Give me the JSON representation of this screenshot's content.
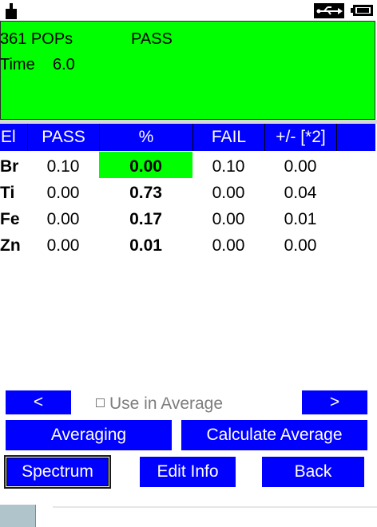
{
  "result": {
    "count": "361 POPs",
    "verdict": "PASS",
    "time_label": "Time",
    "time_value": "6.0",
    "color": "#00ff00"
  },
  "table": {
    "headers": [
      "El",
      "PASS",
      "%",
      "FAIL",
      "+/- [*2]"
    ],
    "rows": [
      {
        "el": "Br",
        "pass": "0.10",
        "pct": "0.00",
        "fail": "0.10",
        "err": "0.00"
      },
      {
        "el": "Ti",
        "pass": "0.00",
        "pct": "0.73",
        "fail": "0.00",
        "err": "0.04"
      },
      {
        "el": "Fe",
        "pass": "0.00",
        "pct": "0.17",
        "fail": "0.00",
        "err": "0.01"
      },
      {
        "el": "Zn",
        "pass": "0.00",
        "pct": "0.01",
        "fail": "0.00",
        "err": "0.00"
      }
    ],
    "header_color": "#0000ff"
  },
  "controls": {
    "prev_label": "<",
    "next_label": ">",
    "use_in_average_label": "Use in Average",
    "averaging_label": "Averaging",
    "calculate_average_label": "Calculate Average",
    "spectrum_label": "Spectrum",
    "edit_info_label": "Edit Info",
    "back_label": "Back"
  },
  "icons": [
    "lock-icon",
    "usb-icon",
    "battery-icon"
  ]
}
